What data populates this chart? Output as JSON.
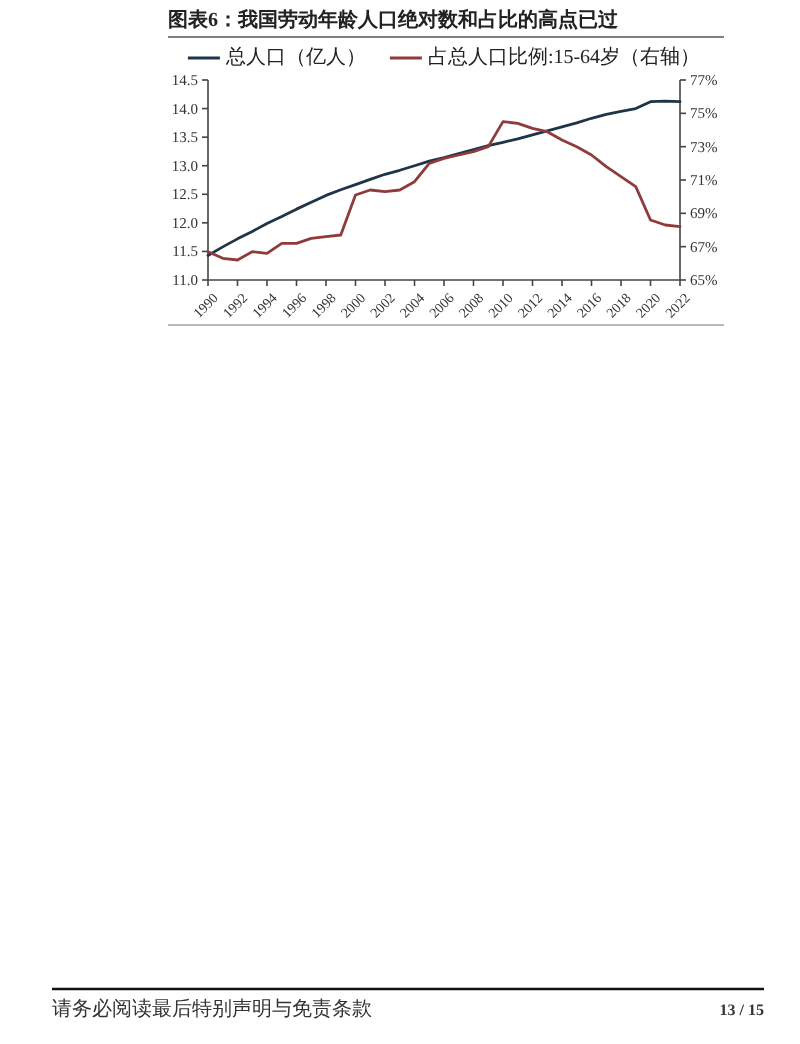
{
  "chart_data": {
    "type": "line",
    "title": "图表6：我国劳动年龄人口绝对数和占比的高点已过",
    "x": [
      1990,
      1991,
      1992,
      1993,
      1994,
      1995,
      1996,
      1997,
      1998,
      1999,
      2000,
      2001,
      2002,
      2003,
      2004,
      2005,
      2006,
      2007,
      2008,
      2009,
      2010,
      2011,
      2012,
      2013,
      2014,
      2015,
      2016,
      2017,
      2018,
      2019,
      2020,
      2021,
      2022
    ],
    "xlim": [
      1990,
      2022
    ],
    "xticks": [
      1990,
      1992,
      1994,
      1996,
      1998,
      2000,
      2002,
      2004,
      2006,
      2008,
      2010,
      2012,
      2014,
      2016,
      2018,
      2020,
      2022
    ],
    "ylim": [
      11,
      14.5
    ],
    "yticks": [
      {
        "value": 11,
        "label": "11.0"
      },
      11.5,
      {
        "value": 12,
        "label": "12.0"
      },
      12.5,
      {
        "value": 13,
        "label": "13.0"
      },
      13.5,
      {
        "value": 14,
        "label": "14.0"
      },
      14.5
    ],
    "y2lim": [
      65,
      77
    ],
    "y2ticks": [
      {
        "value": 65,
        "label": "65%"
      },
      {
        "value": 67,
        "label": "67%"
      },
      {
        "value": 69,
        "label": "69%"
      },
      {
        "value": 71,
        "label": "71%"
      },
      {
        "value": 73,
        "label": "73%"
      },
      {
        "value": 75,
        "label": "75%"
      },
      {
        "value": 77,
        "label": "77%"
      }
    ],
    "series": [
      {
        "name": "总人口（亿人）",
        "color": "#1e3448",
        "values": [
          11.43,
          11.58,
          11.72,
          11.85,
          11.99,
          12.11,
          12.24,
          12.36,
          12.48,
          12.58,
          12.67,
          12.76,
          12.85,
          12.92,
          13.0,
          13.08,
          13.14,
          13.21,
          13.28,
          13.35,
          13.41,
          13.47,
          13.54,
          13.61,
          13.68,
          13.75,
          13.83,
          13.9,
          13.95,
          14.0,
          14.12,
          14.13,
          14.12
        ]
      },
      {
        "name": "占总人口比例:15-64岁（右轴）",
        "color": "#8f3b3b",
        "axis": "y2",
        "values": [
          66.7,
          66.3,
          66.2,
          66.7,
          66.6,
          67.2,
          67.2,
          67.5,
          67.6,
          67.7,
          70.1,
          70.4,
          70.3,
          70.4,
          70.9,
          72.0,
          72.3,
          72.5,
          72.7,
          73.0,
          74.5,
          74.4,
          74.1,
          73.9,
          73.4,
          73.0,
          72.5,
          71.8,
          71.2,
          70.6,
          68.6,
          68.3,
          68.2
        ]
      }
    ],
    "legend": "top",
    "annotations": [
      "请务必阅读最后特别声明与免责条款",
      "13 / 15"
    ]
  }
}
